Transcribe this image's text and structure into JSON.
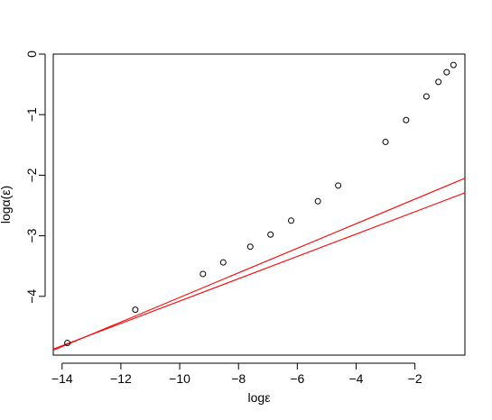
{
  "chart_data": {
    "type": "scatter",
    "title": "",
    "xlabel": "logε",
    "ylabel": "logα(ε)",
    "xlim": [
      -14.3,
      -0.3
    ],
    "ylim": [
      -4.97,
      0.0
    ],
    "x_ticks": [
      -14,
      -12,
      -10,
      -8,
      -6,
      -4,
      -2
    ],
    "x_tick_labels": [
      "−14",
      "−12",
      "−10",
      "−8",
      "−6",
      "−4",
      "−2"
    ],
    "y_ticks": [
      0,
      -1,
      -2,
      -3,
      -4
    ],
    "y_tick_labels": [
      "0",
      "−1",
      "−2",
      "−3",
      "−4"
    ],
    "grid": false,
    "point_style": "open-circle",
    "points": [
      {
        "x": -13.82,
        "y": -4.77
      },
      {
        "x": -11.51,
        "y": -4.22
      },
      {
        "x": -9.21,
        "y": -3.63
      },
      {
        "x": -8.52,
        "y": -3.44
      },
      {
        "x": -7.6,
        "y": -3.18
      },
      {
        "x": -6.91,
        "y": -2.98
      },
      {
        "x": -6.21,
        "y": -2.75
      },
      {
        "x": -5.3,
        "y": -2.43
      },
      {
        "x": -4.61,
        "y": -2.17
      },
      {
        "x": -3.0,
        "y": -1.45
      },
      {
        "x": -2.3,
        "y": -1.09
      },
      {
        "x": -1.61,
        "y": -0.7
      },
      {
        "x": -1.2,
        "y": -0.46
      },
      {
        "x": -0.92,
        "y": -0.3
      },
      {
        "x": -0.69,
        "y": -0.18
      }
    ],
    "lines": [
      {
        "color": "#ff0000",
        "x": [
          -14.3,
          -0.3
        ],
        "y": [
          -4.89,
          -2.05
        ]
      },
      {
        "color": "#ff0000",
        "x": [
          -14.3,
          -0.3
        ],
        "y": [
          -4.87,
          -2.29
        ]
      }
    ],
    "point_color": "#000000"
  }
}
